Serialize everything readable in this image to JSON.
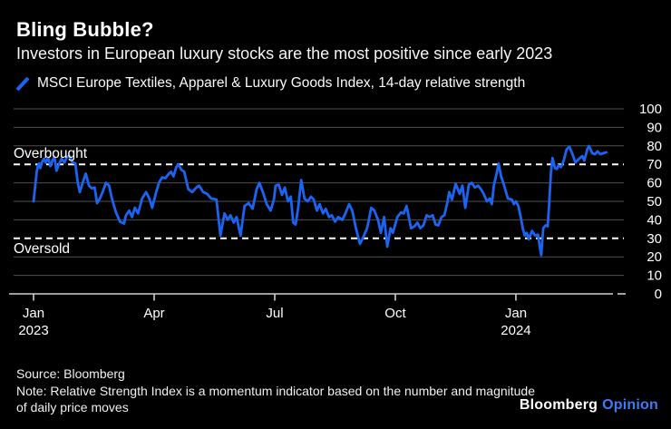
{
  "header": {
    "title": "Bling Bubble?",
    "subtitle": "Investors in European luxury stocks are the most positive since early 2023"
  },
  "legend": {
    "icon": "blue-slash-icon",
    "label": "MSCI Europe Textiles, Apparel & Luxury Goods Index, 14-day relative strength"
  },
  "chart_data": {
    "type": "line",
    "title": "Bling Bubble?",
    "xlabel": "",
    "ylabel": "",
    "x_unit": "months since Jan 2023",
    "y_axis": {
      "min": 0,
      "max": 100,
      "step": 10,
      "tick_labels": [
        "100",
        "90",
        "80",
        "70",
        "60",
        "50",
        "40",
        "30",
        "20",
        "10",
        "0"
      ]
    },
    "x_axis": {
      "ticks": [
        {
          "label": "Jan",
          "sublabel": "2023",
          "m": 0
        },
        {
          "label": "Apr",
          "sublabel": "",
          "m": 3
        },
        {
          "label": "Jul",
          "sublabel": "",
          "m": 6
        },
        {
          "label": "Oct",
          "sublabel": "",
          "m": 9
        },
        {
          "label": "Jan",
          "sublabel": "2024",
          "m": 12
        }
      ]
    },
    "annotations": [
      {
        "label": "Overbought",
        "value": 70
      },
      {
        "label": "Oversold",
        "value": 30
      }
    ],
    "grid": true,
    "legend_position": "top-left",
    "series": [
      {
        "name": "MSCI Europe Textiles, Apparel & Luxury Goods Index, 14-day relative strength",
        "color": "#1b64f2",
        "points": [
          [
            0,
            50
          ],
          [
            0.05,
            60
          ],
          [
            0.08,
            66
          ],
          [
            0.11,
            69.5
          ],
          [
            0.14,
            70.5
          ],
          [
            0.17,
            68
          ],
          [
            0.2,
            70.5
          ],
          [
            0.23,
            72
          ],
          [
            0.26,
            73
          ],
          [
            0.3,
            71
          ],
          [
            0.36,
            73.5
          ],
          [
            0.42,
            69
          ],
          [
            0.47,
            72
          ],
          [
            0.52,
            74
          ],
          [
            0.57,
            66.5
          ],
          [
            0.63,
            70
          ],
          [
            0.7,
            73
          ],
          [
            0.77,
            71
          ],
          [
            0.83,
            74
          ],
          [
            0.9,
            74.5
          ],
          [
            0.97,
            71
          ],
          [
            1.04,
            70.5
          ],
          [
            1.1,
            60
          ],
          [
            1.15,
            55
          ],
          [
            1.22,
            60
          ],
          [
            1.3,
            65
          ],
          [
            1.38,
            58.5
          ],
          [
            1.45,
            57
          ],
          [
            1.52,
            57.5
          ],
          [
            1.58,
            49
          ],
          [
            1.65,
            51.5
          ],
          [
            1.72,
            55
          ],
          [
            1.8,
            60
          ],
          [
            1.88,
            58.5
          ],
          [
            1.95,
            51.5
          ],
          [
            2.05,
            44
          ],
          [
            2.15,
            39
          ],
          [
            2.25,
            38
          ],
          [
            2.3,
            42.5
          ],
          [
            2.38,
            45
          ],
          [
            2.45,
            41.5
          ],
          [
            2.52,
            46.5
          ],
          [
            2.6,
            43.5
          ],
          [
            2.7,
            51.5
          ],
          [
            2.8,
            55
          ],
          [
            2.88,
            51.5
          ],
          [
            2.95,
            46.5
          ],
          [
            3.05,
            55
          ],
          [
            3.12,
            60
          ],
          [
            3.2,
            63
          ],
          [
            3.28,
            62.5
          ],
          [
            3.35,
            64.5
          ],
          [
            3.42,
            66
          ],
          [
            3.48,
            63.5
          ],
          [
            3.55,
            68.5
          ],
          [
            3.6,
            70
          ],
          [
            3.68,
            67
          ],
          [
            3.75,
            66
          ],
          [
            3.85,
            56.5
          ],
          [
            3.95,
            55
          ],
          [
            4.05,
            57.5
          ],
          [
            4.12,
            58.5
          ],
          [
            4.22,
            55
          ],
          [
            4.32,
            54
          ],
          [
            4.42,
            51.5
          ],
          [
            4.55,
            51
          ],
          [
            4.65,
            31.5
          ],
          [
            4.75,
            43.5
          ],
          [
            4.83,
            40
          ],
          [
            4.9,
            42.5
          ],
          [
            4.98,
            38.5
          ],
          [
            5.05,
            41.5
          ],
          [
            5.15,
            31.5
          ],
          [
            5.25,
            47.5
          ],
          [
            5.35,
            49
          ],
          [
            5.45,
            46
          ],
          [
            5.55,
            56.5
          ],
          [
            5.62,
            60
          ],
          [
            5.72,
            54
          ],
          [
            5.8,
            48.5
          ],
          [
            5.9,
            45
          ],
          [
            5.98,
            51
          ],
          [
            6.02,
            58.5
          ],
          [
            6.1,
            59
          ],
          [
            6.18,
            53.5
          ],
          [
            6.25,
            57.5
          ],
          [
            6.33,
            50
          ],
          [
            6.4,
            52.5
          ],
          [
            6.46,
            38.5
          ],
          [
            6.52,
            37.5
          ],
          [
            6.58,
            46
          ],
          [
            6.66,
            61.5
          ],
          [
            6.74,
            51.5
          ],
          [
            6.82,
            50
          ],
          [
            6.9,
            52.5
          ],
          [
            6.97,
            51
          ],
          [
            7.05,
            45
          ],
          [
            7.12,
            48.5
          ],
          [
            7.2,
            43.5
          ],
          [
            7.27,
            46
          ],
          [
            7.35,
            41.5
          ],
          [
            7.42,
            42.5
          ],
          [
            7.5,
            39
          ],
          [
            7.58,
            41.5
          ],
          [
            7.68,
            40
          ],
          [
            7.76,
            43.5
          ],
          [
            7.85,
            48.5
          ],
          [
            7.93,
            45
          ],
          [
            8.02,
            35.5
          ],
          [
            8.12,
            27
          ],
          [
            8.2,
            30.5
          ],
          [
            8.3,
            35.5
          ],
          [
            8.4,
            46.5
          ],
          [
            8.48,
            45
          ],
          [
            8.57,
            40
          ],
          [
            8.64,
            33
          ],
          [
            8.72,
            41.5
          ],
          [
            8.8,
            25.5
          ],
          [
            8.88,
            35.5
          ],
          [
            8.94,
            33
          ],
          [
            9.05,
            41.5
          ],
          [
            9.14,
            44
          ],
          [
            9.21,
            43.5
          ],
          [
            9.28,
            47.5
          ],
          [
            9.39,
            35.5
          ],
          [
            9.48,
            36.5
          ],
          [
            9.55,
            38.5
          ],
          [
            9.62,
            35.5
          ],
          [
            9.7,
            37
          ],
          [
            9.78,
            42.5
          ],
          [
            9.85,
            41.5
          ],
          [
            9.93,
            42.5
          ],
          [
            10,
            37.5
          ],
          [
            10.07,
            37
          ],
          [
            10.15,
            41.5
          ],
          [
            10.22,
            42.5
          ],
          [
            10.3,
            50
          ],
          [
            10.34,
            55
          ],
          [
            10.41,
            51
          ],
          [
            10.5,
            59.5
          ],
          [
            10.6,
            54
          ],
          [
            10.67,
            58.5
          ],
          [
            10.74,
            46.5
          ],
          [
            10.83,
            59
          ],
          [
            10.9,
            60
          ],
          [
            10.98,
            57.5
          ],
          [
            11.06,
            58.5
          ],
          [
            11.13,
            56.5
          ],
          [
            11.2,
            54
          ],
          [
            11.28,
            50
          ],
          [
            11.35,
            51.5
          ],
          [
            11.4,
            48.5
          ],
          [
            11.45,
            58.5
          ],
          [
            11.52,
            65
          ],
          [
            11.57,
            70.5
          ],
          [
            11.63,
            63.5
          ],
          [
            11.7,
            59
          ],
          [
            11.8,
            51.5
          ],
          [
            11.9,
            51
          ],
          [
            11.95,
            48.5
          ],
          [
            12,
            50
          ],
          [
            12.06,
            47.5
          ],
          [
            12.12,
            41.5
          ],
          [
            12.17,
            35.5
          ],
          [
            12.22,
            31.5
          ],
          [
            12.27,
            33
          ],
          [
            12.32,
            29.5
          ],
          [
            12.4,
            34
          ],
          [
            12.48,
            31.5
          ],
          [
            12.55,
            32
          ],
          [
            12.6,
            24.5
          ],
          [
            12.63,
            21
          ],
          [
            12.68,
            35.5
          ],
          [
            12.74,
            37
          ],
          [
            12.79,
            36.5
          ],
          [
            12.83,
            50
          ],
          [
            12.87,
            65
          ],
          [
            12.91,
            73.5
          ],
          [
            12.97,
            68
          ],
          [
            13.02,
            67.5
          ],
          [
            13.06,
            69.5
          ],
          [
            13.12,
            68.5
          ],
          [
            13.19,
            72
          ],
          [
            13.26,
            78
          ],
          [
            13.33,
            79.5
          ],
          [
            13.4,
            76
          ],
          [
            13.48,
            71
          ],
          [
            13.57,
            73
          ],
          [
            13.65,
            74.5
          ],
          [
            13.7,
            72
          ],
          [
            13.78,
            78.5
          ],
          [
            13.82,
            79.9
          ],
          [
            13.9,
            76
          ],
          [
            13.97,
            75.5
          ],
          [
            14.03,
            77
          ],
          [
            14.1,
            75.5
          ],
          [
            14.17,
            76
          ],
          [
            14.25,
            76.5
          ]
        ]
      }
    ]
  },
  "footer": {
    "source": "Source: Bloomberg",
    "note": "Note: Relative Strength Index is a momentum indicator based on the number and magnitude of daily price moves"
  },
  "branding": {
    "name": "Bloomberg",
    "product": "Opinion"
  },
  "colors": {
    "background": "#000000",
    "line_blue": "#1b64f2",
    "opinion_blue": "#3b7bf7",
    "grid": "#4f4f4f",
    "axis": "#cfcfcf",
    "threshold_dash": "#ffffff",
    "text": "#ffffff"
  }
}
